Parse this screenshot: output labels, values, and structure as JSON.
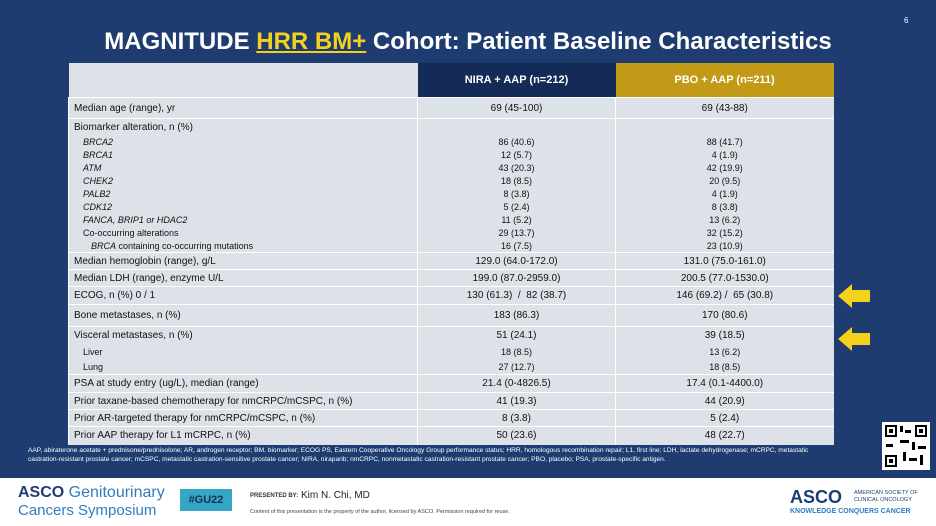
{
  "header": {
    "title_parts": [
      "MAGNITUDE ",
      "HRR BM+",
      " Cohort: Patient Baseline Characteristics"
    ],
    "page_number": "6"
  },
  "table": {
    "columns": [
      "NIRA + AAP (n=212)",
      "PBO + AAP (n=211)"
    ],
    "rows": [
      {
        "label": "Median age (range), yr",
        "values": [
          "69 (45-100)",
          "69 (43-88)"
        ]
      },
      {
        "label": "Biomarker alteration, n (%)",
        "items": [
          {
            "label": "BRCA2",
            "values": [
              "86 (40.6)",
              "88 (41.7)"
            ]
          },
          {
            "label": "BRCA1",
            "values": [
              "12 (5.7)",
              "4 (1.9)"
            ]
          },
          {
            "label": "ATM",
            "values": [
              "43 (20.3)",
              "42 (19.9)"
            ]
          },
          {
            "label": "CHEK2",
            "values": [
              "18 (8.5)",
              "20 (9.5)"
            ]
          },
          {
            "label": "PALB2",
            "values": [
              "8 (3.8)",
              "4 (1.9)"
            ]
          },
          {
            "label": "CDK12",
            "values": [
              "5 (2.4)",
              "8 (3.8)"
            ]
          },
          {
            "label": "FANCA, BRIP1 or HDAC2",
            "values": [
              "11 (5.2)",
              "13 (6.2)"
            ]
          },
          {
            "label": "Co-occurring alterations",
            "values": [
              "29 (13.7)",
              "32 (15.2)"
            ]
          },
          {
            "label_parts": [
              "BRCA",
              " containing co-occurring mutations"
            ],
            "values": [
              "16 (7.5)",
              "23 (10.9)"
            ]
          }
        ]
      },
      {
        "label": "Median hemoglobin (range), g/L",
        "values": [
          "129.0 (64.0-172.0)",
          "131.0 (75.0-161.0)"
        ]
      },
      {
        "label": "Median LDH (range), enzyme U/L",
        "values": [
          "199.0 (87.0-2959.0)",
          "200.5 (77.0-1530.0)"
        ]
      },
      {
        "label": "ECOG, n (%) 0 / 1",
        "values": [
          "130 (61.3)  /  82 (38.7)",
          "146 (69.2) /  65 (30.8)"
        ]
      },
      {
        "label": "Bone metastases, n (%)",
        "values": [
          "183 (86.3)",
          "170 (80.6)"
        ]
      },
      {
        "label": "Visceral metastases, n (%)",
        "values": [
          "51 (24.1)",
          "39 (18.5)"
        ],
        "items": [
          {
            "label": "Liver",
            "values": [
              "18 (8.5)",
              "13 (6.2)"
            ]
          },
          {
            "label": "Lung",
            "values": [
              "27 (12.7)",
              "18 (8.5)"
            ]
          }
        ]
      },
      {
        "label": "PSA at study entry (ug/L), median (range)",
        "values": [
          "21.4 (0-4826.5)",
          "17.4 (0.1-4400.0)"
        ]
      },
      {
        "label": "Prior taxane-based chemotherapy for nmCRPC/mCSPC, n (%)",
        "values": [
          "41 (19.3)",
          "44 (20.9)"
        ]
      },
      {
        "label": "Prior AR-targeted therapy for nmCRPC/mCSPC, n (%)",
        "values": [
          "8 (3.8)",
          "5 (2.4)"
        ]
      },
      {
        "label": "Prior AAP therapy for L1 mCRPC, n (%)",
        "values": [
          "50 (23.6)",
          "48 (22.7)"
        ]
      }
    ]
  },
  "footnote": "AAP, abiraterone acetate + prednisone/prednisolone; AR, androgen receptor; BM, biomarker; ECOG PS, Eastern Cooperative Oncology Group performance status; HRR, homologous recombination repair; L1, first line; LDH, lactate dehydrogenase; mCRPC, metastatic castration-resistant prostate cancer; mCSPC, metastatic castration-sensitive prostate cancer; NIRA, niraparib; nmCRPC, nonmetastatic castration-resistant prostate cancer; PBO, placebo; PSA, prostate-specific antigen.",
  "footer": {
    "logo_line1_a": "ASCO",
    "logo_line1_b": " Genitourinary",
    "logo_line2": "Cancers Symposium",
    "hashtag": "#GU22",
    "presented_by": "PRESENTED BY:",
    "presenter": "Kim N. Chi, MD",
    "disclaimer": "Content of this presentation is the property of the author, licensed by ASCO. Permission required for reuse.",
    "asco": "ASCO",
    "asco_sub1": "AMERICAN SOCIETY OF",
    "asco_sub2": "CLINICAL ONCOLOGY",
    "tagline": "KNOWLEDGE CONQUERS CANCER"
  }
}
